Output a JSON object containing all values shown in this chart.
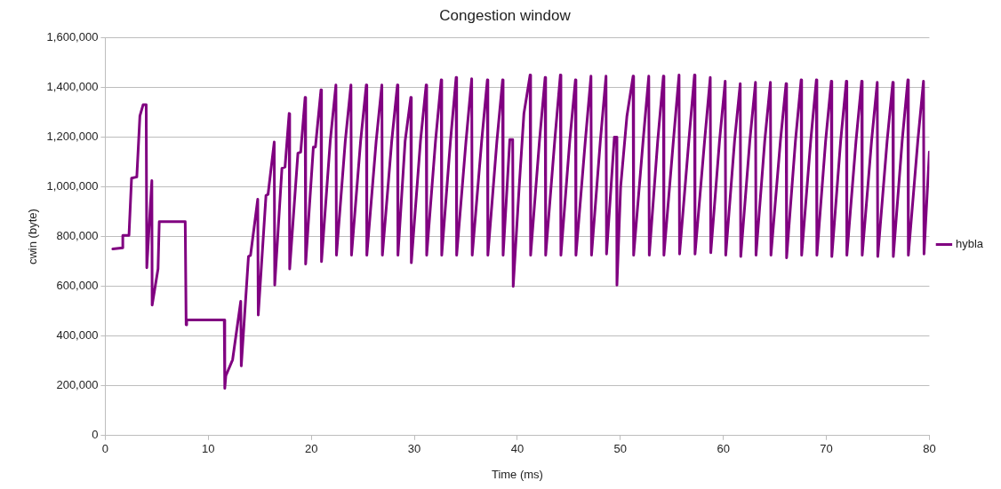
{
  "chart_data": {
    "type": "line",
    "title": "Congestion window",
    "xlabel": "Time (ms)",
    "ylabel": "cwin (byte)",
    "xlim": [
      0,
      80
    ],
    "xticks": [
      0,
      10,
      20,
      30,
      40,
      50,
      60,
      70,
      80
    ],
    "ylim": [
      0,
      1600000
    ],
    "yticks": [
      0,
      {
        "value": 200000,
        "label": "200,000"
      },
      {
        "value": 400000,
        "label": "400,000"
      },
      {
        "value": 600000,
        "label": "600,000"
      },
      {
        "value": 800000,
        "label": "800,000"
      },
      {
        "value": 1000000,
        "label": "1,000,000"
      },
      {
        "value": 1200000,
        "label": "1,200,000"
      },
      {
        "value": 1400000,
        "label": "1,400,000"
      },
      {
        "value": 1600000,
        "label": "1,600,000"
      }
    ],
    "grid": "y",
    "legend": "right",
    "marker": "none",
    "line_style": "solid",
    "series": [
      {
        "name": "hybla",
        "color": "#800080",
        "x": [
          0.73,
          1.7,
          1.7,
          2.3,
          2.55,
          3.06,
          3.36,
          3.67,
          3.97,
          4.03,
          4.52,
          4.55,
          5.12,
          5.24,
          7.76,
          7.85,
          7.9,
          11.55,
          11.6,
          11.7,
          12.36,
          13.15,
          13.2,
          13.9,
          14.1,
          14.8,
          14.85,
          15.6,
          15.8,
          16.4,
          16.45,
          17.15,
          17.45,
          17.85,
          17.9,
          18.7,
          18.97,
          19.4,
          19.45,
          20.2,
          20.4,
          20.94,
          20.99,
          21.84,
          22.39,
          22.44,
          23.3,
          23.85,
          23.9,
          24.79,
          25.34,
          25.39,
          26.3,
          26.85,
          26.9,
          27.81,
          28.36,
          28.41,
          29.11,
          29.66,
          29.71,
          30.6,
          31.15,
          31.2,
          32.06,
          32.61,
          32.66,
          33.51,
          34.06,
          34.11,
          35.02,
          35.57,
          35.62,
          36.54,
          37.09,
          37.14,
          38.02,
          38.57,
          38.62,
          39.27,
          39.55,
          39.6,
          40.18,
          40.64,
          41.24,
          41.29,
          42.15,
          42.7,
          42.75,
          43.63,
          44.18,
          44.23,
          45.09,
          45.64,
          45.69,
          46.6,
          47.15,
          47.2,
          48.06,
          48.61,
          48.66,
          49.42,
          49.64,
          49.67,
          50.03,
          50.64,
          51.24,
          51.29,
          52.21,
          52.76,
          52.81,
          53.63,
          54.18,
          54.23,
          55.15,
          55.7,
          55.75,
          56.65,
          57.2,
          57.25,
          58.18,
          58.73,
          58.78,
          59.63,
          60.18,
          60.23,
          61.09,
          61.64,
          61.69,
          62.57,
          63.12,
          63.17,
          64.02,
          64.57,
          64.62,
          65.54,
          66.09,
          66.14,
          67.0,
          67.55,
          67.6,
          68.48,
          69.03,
          69.08,
          69.93,
          70.48,
          70.53,
          71.39,
          71.94,
          71.99,
          72.88,
          73.43,
          73.48,
          74.39,
          74.94,
          74.99,
          75.9,
          76.45,
          76.5,
          77.36,
          77.91,
          77.96,
          78.88,
          79.43,
          79.48,
          80
        ],
        "values": [
          750000,
          755000,
          805000,
          805000,
          1035000,
          1040000,
          1285000,
          1330000,
          1330000,
          675000,
          1025000,
          525000,
          670000,
          860000,
          860000,
          445000,
          465000,
          465000,
          190000,
          240000,
          305000,
          540000,
          280000,
          720000,
          725000,
          950000,
          485000,
          965000,
          970000,
          1180000,
          605000,
          1075000,
          1080000,
          1295000,
          670000,
          1135000,
          1140000,
          1360000,
          690000,
          1160000,
          1160000,
          1390000,
          700000,
          1185000,
          1410000,
          725000,
          1185000,
          1410000,
          725000,
          1185000,
          1410000,
          725000,
          1185000,
          1410000,
          725000,
          1185000,
          1410000,
          725000,
          1185000,
          1360000,
          695000,
          1185000,
          1410000,
          725000,
          1185000,
          1430000,
          725000,
          1185000,
          1440000,
          725000,
          1185000,
          1435000,
          725000,
          1185000,
          1430000,
          725000,
          1185000,
          1430000,
          725000,
          1190000,
          1190000,
          600000,
          1000000,
          1295000,
          1450000,
          725000,
          1185000,
          1440000,
          725000,
          1185000,
          1450000,
          725000,
          1185000,
          1430000,
          725000,
          1185000,
          1445000,
          725000,
          1185000,
          1445000,
          730000,
          1200000,
          1200000,
          605000,
          1000000,
          1285000,
          1445000,
          725000,
          1185000,
          1445000,
          725000,
          1185000,
          1445000,
          725000,
          1185000,
          1450000,
          730000,
          1185000,
          1450000,
          730000,
          1185000,
          1440000,
          735000,
          1185000,
          1425000,
          725000,
          1185000,
          1415000,
          720000,
          1185000,
          1420000,
          725000,
          1185000,
          1420000,
          725000,
          1185000,
          1415000,
          715000,
          1185000,
          1430000,
          725000,
          1185000,
          1430000,
          725000,
          1185000,
          1425000,
          720000,
          1185000,
          1425000,
          725000,
          1185000,
          1425000,
          725000,
          1185000,
          1420000,
          720000,
          1185000,
          1420000,
          720000,
          1185000,
          1430000,
          725000,
          1185000,
          1425000,
          730000,
          1140000
        ]
      }
    ]
  }
}
